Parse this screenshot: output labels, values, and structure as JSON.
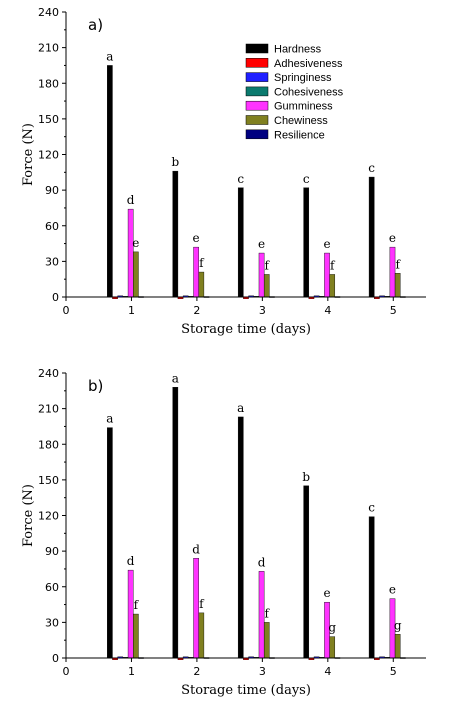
{
  "chart_data": [
    {
      "type": "bar",
      "panel_label": "a)",
      "xlabel": "Storage time (days)",
      "ylabel": "Force (N)",
      "ylim": [
        0,
        240
      ],
      "xlim": [
        0,
        5.5
      ],
      "yticks": [
        0,
        30,
        60,
        90,
        120,
        150,
        180,
        210,
        240
      ],
      "xticks": [
        0,
        1,
        2,
        3,
        4,
        5
      ],
      "categories": [
        "1",
        "2",
        "3",
        "4",
        "5"
      ],
      "legend_position": "top-right",
      "series": [
        {
          "name": "Hardness",
          "color": "#000000",
          "values": [
            195,
            106,
            92,
            92,
            101
          ],
          "labels": [
            "a",
            "b",
            "c",
            "c",
            "c"
          ]
        },
        {
          "name": "Adhesiveness",
          "color": "#ff0000",
          "values": [
            -1.5,
            -1.5,
            -1.5,
            -1.5,
            -1.5
          ],
          "labels": []
        },
        {
          "name": "Springiness",
          "color": "#1f1fff",
          "values": [
            1,
            1,
            1,
            1,
            1
          ],
          "labels": []
        },
        {
          "name": "Cohesiveness",
          "color": "#0b7a6e",
          "values": [
            0.6,
            0.6,
            0.6,
            0.6,
            0.6
          ],
          "labels": []
        },
        {
          "name": "Gumminess",
          "color": "#ff33ff",
          "values": [
            74,
            42,
            37,
            37,
            42
          ],
          "labels": [
            "d",
            "e",
            "e",
            "e",
            "e"
          ]
        },
        {
          "name": "Chewiness",
          "color": "#808020",
          "values": [
            38,
            21,
            19,
            19,
            20
          ],
          "labels": [
            "e",
            "f",
            "f",
            "f",
            "f"
          ]
        },
        {
          "name": "Resilience",
          "color": "#000080",
          "values": [
            0.4,
            0.4,
            0.4,
            0.4,
            0.4
          ],
          "labels": []
        }
      ]
    },
    {
      "type": "bar",
      "panel_label": "b)",
      "xlabel": "Storage time (days)",
      "ylabel": "Force (N)",
      "ylim": [
        0,
        240
      ],
      "xlim": [
        0,
        5.5
      ],
      "yticks": [
        0,
        30,
        60,
        90,
        120,
        150,
        180,
        210,
        240
      ],
      "xticks": [
        0,
        1,
        2,
        3,
        4,
        5
      ],
      "categories": [
        "1",
        "2",
        "3",
        "4",
        "5"
      ],
      "series": [
        {
          "name": "Hardness",
          "color": "#000000",
          "values": [
            194,
            228,
            203,
            145,
            119
          ],
          "labels": [
            "a",
            "a",
            "a",
            "b",
            "c"
          ]
        },
        {
          "name": "Adhesiveness",
          "color": "#ff0000",
          "values": [
            -1.5,
            -1.5,
            -1.5,
            -1.5,
            -1.5
          ],
          "labels": []
        },
        {
          "name": "Springiness",
          "color": "#1f1fff",
          "values": [
            1,
            1,
            1,
            1,
            1
          ],
          "labels": []
        },
        {
          "name": "Cohesiveness",
          "color": "#0b7a6e",
          "values": [
            0.6,
            0.6,
            0.6,
            0.6,
            0.6
          ],
          "labels": []
        },
        {
          "name": "Gumminess",
          "color": "#ff33ff",
          "values": [
            74,
            84,
            73,
            47,
            50
          ],
          "labels": [
            "d",
            "d",
            "d",
            "e",
            "e"
          ]
        },
        {
          "name": "Chewiness",
          "color": "#808020",
          "values": [
            37,
            38,
            30,
            18,
            20
          ],
          "labels": [
            "f",
            "f",
            "f",
            "g",
            "g"
          ]
        },
        {
          "name": "Resilience",
          "color": "#000080",
          "values": [
            0.4,
            0.4,
            0.4,
            0.4,
            0.4
          ],
          "labels": []
        }
      ]
    }
  ]
}
